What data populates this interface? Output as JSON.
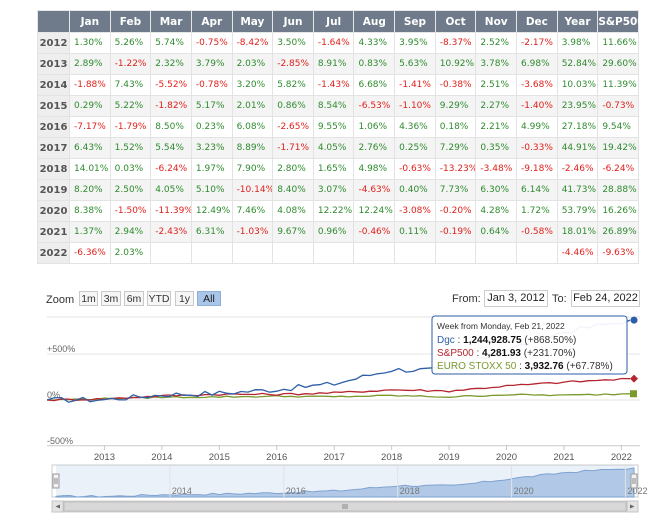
{
  "table": {
    "headers": [
      "",
      "Jan",
      "Feb",
      "Mar",
      "Apr",
      "May",
      "Jun",
      "Jul",
      "Aug",
      "Sep",
      "Oct",
      "Nov",
      "Dec",
      "Year",
      "S&P500"
    ],
    "rows": [
      {
        "year": "2012",
        "cells": [
          "1.30%",
          "5.26%",
          "5.74%",
          "-0.75%",
          "-8.42%",
          "3.50%",
          "-1.64%",
          "4.33%",
          "3.95%",
          "-8.37%",
          "2.52%",
          "-2.17%",
          "3.98%",
          "11.66%"
        ]
      },
      {
        "year": "2013",
        "cells": [
          "2.89%",
          "-1.22%",
          "2.32%",
          "3.79%",
          "2.03%",
          "-2.85%",
          "8.91%",
          "0.83%",
          "5.63%",
          "10.92%",
          "3.78%",
          "6.98%",
          "52.84%",
          "29.60%"
        ]
      },
      {
        "year": "2014",
        "cells": [
          "-1.88%",
          "7.43%",
          "-5.52%",
          "-0.78%",
          "3.20%",
          "5.82%",
          "-1.43%",
          "6.68%",
          "-1.41%",
          "-0.38%",
          "2.51%",
          "-3.68%",
          "10.03%",
          "11.39%"
        ]
      },
      {
        "year": "2015",
        "cells": [
          "0.29%",
          "5.22%",
          "-1.82%",
          "5.17%",
          "2.01%",
          "0.86%",
          "8.54%",
          "-6.53%",
          "-1.10%",
          "9.29%",
          "2.27%",
          "-1.40%",
          "23.95%",
          "-0.73%"
        ]
      },
      {
        "year": "2016",
        "cells": [
          "-7.17%",
          "-1.79%",
          "8.50%",
          "0.23%",
          "6.08%",
          "-2.65%",
          "9.55%",
          "1.06%",
          "4.36%",
          "0.18%",
          "2.21%",
          "4.99%",
          "27.18%",
          "9.54%"
        ]
      },
      {
        "year": "2017",
        "cells": [
          "6.43%",
          "1.52%",
          "5.54%",
          "3.23%",
          "8.89%",
          "-1.71%",
          "4.05%",
          "2.76%",
          "0.25%",
          "7.29%",
          "0.35%",
          "-0.33%",
          "44.91%",
          "19.42%"
        ]
      },
      {
        "year": "2018",
        "cells": [
          "14.01%",
          "0.03%",
          "-6.24%",
          "1.97%",
          "7.90%",
          "2.80%",
          "1.65%",
          "4.98%",
          "-0.63%",
          "-13.23%",
          "-3.48%",
          "-9.18%",
          "-2.46%",
          "-6.24%"
        ]
      },
      {
        "year": "2019",
        "cells": [
          "8.20%",
          "2.50%",
          "4.05%",
          "5.10%",
          "-10.14%",
          "8.40%",
          "3.07%",
          "-4.63%",
          "0.40%",
          "7.73%",
          "6.30%",
          "6.14%",
          "41.73%",
          "28.88%"
        ]
      },
      {
        "year": "2020",
        "cells": [
          "8.38%",
          "-1.50%",
          "-11.39%",
          "12.49%",
          "7.46%",
          "4.08%",
          "12.22%",
          "12.24%",
          "-3.08%",
          "-0.20%",
          "4.28%",
          "1.72%",
          "53.79%",
          "16.26%"
        ]
      },
      {
        "year": "2021",
        "cells": [
          "1.37%",
          "2.94%",
          "-2.43%",
          "6.31%",
          "-1.03%",
          "9.67%",
          "0.96%",
          "-0.46%",
          "0.11%",
          "-0.19%",
          "0.64%",
          "-0.58%",
          "18.01%",
          "26.89%"
        ]
      },
      {
        "year": "2022",
        "cells": [
          "-6.36%",
          "2.03%",
          "",
          "",
          "",
          "",
          "",
          "",
          "",
          "",
          "",
          "",
          "-4.46%",
          "-9.63%"
        ]
      }
    ]
  },
  "chart": {
    "zoom_label": "Zoom",
    "zoom_buttons": [
      {
        "label": "1m",
        "active": false
      },
      {
        "label": "3m",
        "active": false
      },
      {
        "label": "6m",
        "active": false
      },
      {
        "label": "YTD",
        "active": false
      },
      {
        "label": "1y",
        "active": false
      },
      {
        "label": "All",
        "active": true
      }
    ],
    "from_label": "From:",
    "from_date": "Jan 3, 2012",
    "to_label": "To:",
    "to_date": "Feb 24, 2022",
    "y_tick_labels": [
      "+500%",
      "0%",
      "-500%"
    ],
    "x_tick_labels": [
      "2013",
      "2014",
      "2015",
      "2016",
      "2017",
      "2018",
      "2019",
      "2020",
      "2021",
      "2022"
    ],
    "navigator_labels": [
      "2014",
      "2016",
      "2018",
      "2020",
      "2022"
    ],
    "colors": {
      "dgc": "#2f5ea8",
      "sp500": "#b5252f",
      "stoxx": "#7a9a2e",
      "navigator_fill": "#b9cfe8"
    },
    "tooltip": {
      "title": "Week from Monday, Feb 21, 2022",
      "lines": [
        {
          "name": "Dgc",
          "value": "1,244,928.75",
          "change": "(+868.50%)",
          "color": "#2f5ea8"
        },
        {
          "name": "S&P500",
          "value": "4,281.93",
          "change": "(+231.70%)",
          "color": "#b5252f"
        },
        {
          "name": "EURO STOXX 50",
          "value": "3,932.76",
          "change": "(+67.78%)",
          "color": "#7a9a2e"
        }
      ]
    }
  },
  "chart_data": {
    "type": "line",
    "x": [
      2012,
      2013,
      2014,
      2015,
      2016,
      2017,
      2018,
      2019,
      2020,
      2021,
      2022.15
    ],
    "series": [
      {
        "name": "Dgc",
        "values": [
          0,
          4,
          57,
          74,
          115,
          175,
          330,
          325,
          545,
          740,
          868.5
        ]
      },
      {
        "name": "S&P500",
        "values": [
          0,
          12,
          45,
          62,
          61,
          77,
          111,
          98,
          153,
          193,
          231.7
        ]
      },
      {
        "name": "EURO STOXX 50",
        "values": [
          0,
          14,
          30,
          34,
          41,
          35,
          48,
          33,
          58,
          51,
          67.78
        ]
      }
    ],
    "y_ticks": [
      500,
      0,
      -500
    ],
    "ylim": [
      -500,
      1000
    ],
    "xlim": [
      2012,
      2022.15
    ],
    "legend": "tooltip"
  }
}
